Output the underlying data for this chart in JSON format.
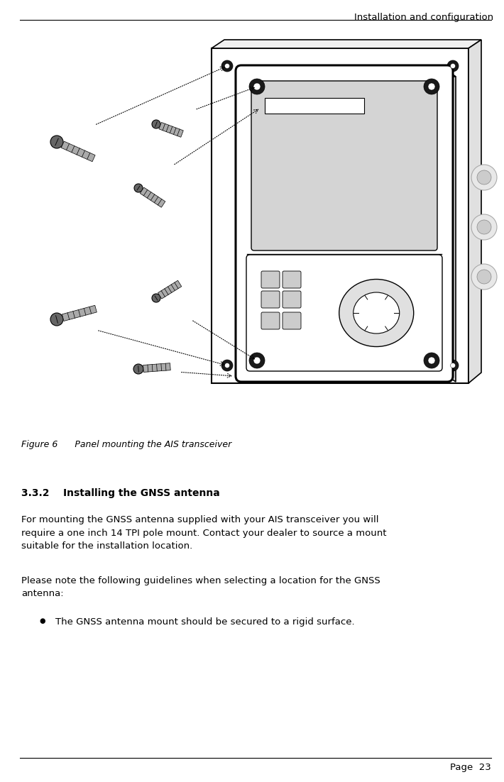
{
  "header_text": "Installation and configuration",
  "header_fontsize": 9.5,
  "figure_caption": "Figure 6      Panel mounting the AIS transceiver",
  "figure_caption_fontsize": 9,
  "section_heading": "3.3.2    Installing the GNSS antenna",
  "section_heading_fontsize": 10,
  "body_text_1": "For mounting the GNSS antenna supplied with your AIS transceiver you will\nrequire a one inch 14 TPI pole mount. Contact your dealer to source a mount\nsuitable for the installation location.",
  "body_text_2": "Please note the following guidelines when selecting a location for the GNSS\nantenna:",
  "bullet_text": "The GNSS antenna mount should be secured to a rigid surface.",
  "footer_text": "Page  23",
  "body_fontsize": 9.5,
  "footer_fontsize": 9.5,
  "bg_color": "#ffffff",
  "text_color": "#000000",
  "line_color": "#000000"
}
